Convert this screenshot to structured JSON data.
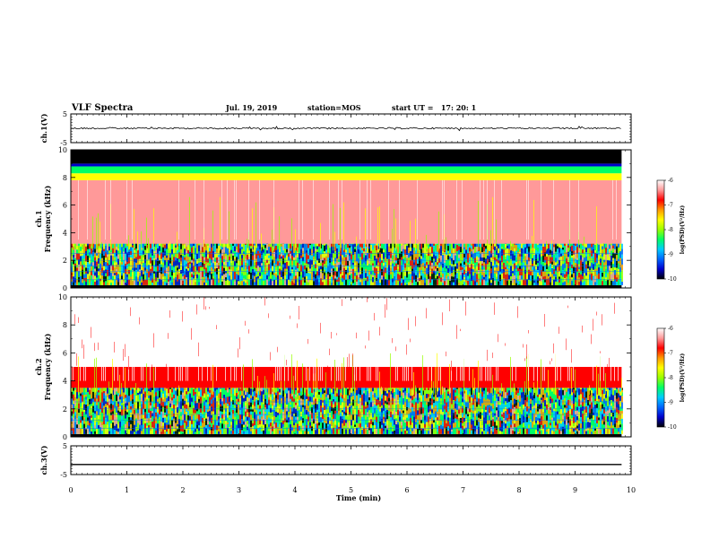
{
  "header": {
    "title": "VLF Spectra",
    "date": "Jul. 19, 2019",
    "station": "station=MOS",
    "start": "start UT =   17: 20: 1"
  },
  "chart_data": [
    {
      "type": "line",
      "name": "ch1-waveform",
      "ylabel": "ch.1(V)",
      "ylim": [
        -5,
        5
      ],
      "yticks": [
        "5",
        "-5"
      ],
      "xlim": [
        0,
        10
      ],
      "x": [
        0,
        9.83
      ],
      "y": [
        0,
        0
      ]
    },
    {
      "type": "heatmap",
      "name": "ch1-spectrogram",
      "ylabel": "ch.1\nFrequency (kHz)",
      "ylim": [
        0,
        10
      ],
      "yticks": [
        "0",
        "2",
        "4",
        "6",
        "8",
        "10"
      ],
      "xlim": [
        0,
        10
      ],
      "data_xmax": 9.83,
      "bands": [
        {
          "fmin": 0,
          "fmax": 0.2,
          "log_psd": -10
        },
        {
          "fmin": 0.2,
          "fmax": 3.2,
          "log_psd": -8.5
        },
        {
          "fmin": 3.2,
          "fmax": 7.8,
          "log_psd": -6.5
        },
        {
          "fmin": 7.8,
          "fmax": 8.3,
          "log_psd": -7.5
        },
        {
          "fmin": 8.3,
          "fmax": 8.8,
          "log_psd": -8.5
        },
        {
          "fmin": 8.8,
          "fmax": 9.0,
          "log_psd": -9.5
        },
        {
          "fmin": 9.0,
          "fmax": 10,
          "log_psd": -10
        }
      ],
      "colorbar": {
        "label": "log(PSD)(V²/Hz)",
        "ticks": [
          "-6",
          "-7",
          "-8",
          "-9",
          "-10"
        ],
        "range": [
          -10,
          -6
        ]
      }
    },
    {
      "type": "heatmap",
      "name": "ch2-spectrogram",
      "ylabel": "ch.2\nFrequency (kHz)",
      "ylim": [
        0,
        10
      ],
      "yticks": [
        "0",
        "2",
        "4",
        "6",
        "8",
        "10"
      ],
      "xlim": [
        0,
        10
      ],
      "data_xmax": 9.83,
      "bands": [
        {
          "fmin": 0,
          "fmax": 0.2,
          "log_psd": -10
        },
        {
          "fmin": 0.2,
          "fmax": 3.5,
          "log_psd": -8.5
        },
        {
          "fmin": 3.5,
          "fmax": 5.0,
          "log_psd": -7
        },
        {
          "fmin": 5.0,
          "fmax": 10,
          "log_psd": -6.2
        }
      ],
      "colorbar": {
        "label": "log(PSD)(V²/Hz)",
        "ticks": [
          "-6",
          "-7",
          "-8",
          "-9",
          "-10"
        ],
        "range": [
          -10,
          -6
        ]
      }
    },
    {
      "type": "line",
      "name": "ch3-waveform",
      "ylabel": "ch.3(V)",
      "ylim": [
        -5,
        5
      ],
      "yticks": [
        "5",
        "-5"
      ],
      "xlim": [
        0,
        10
      ],
      "x": [
        0,
        9.83
      ],
      "y": [
        -1.5,
        -1.5
      ]
    }
  ],
  "xaxis": {
    "label": "Time (min)",
    "ticks": [
      "0",
      "1",
      "2",
      "3",
      "4",
      "5",
      "6",
      "7",
      "8",
      "9",
      "10"
    ]
  },
  "colors": {
    "colormap": [
      "#000000",
      "#0000cc",
      "#0066ff",
      "#00ccff",
      "#00ff66",
      "#99ff00",
      "#ffff00",
      "#ff9900",
      "#ff0000",
      "#ff9999",
      "#ffffff"
    ]
  }
}
